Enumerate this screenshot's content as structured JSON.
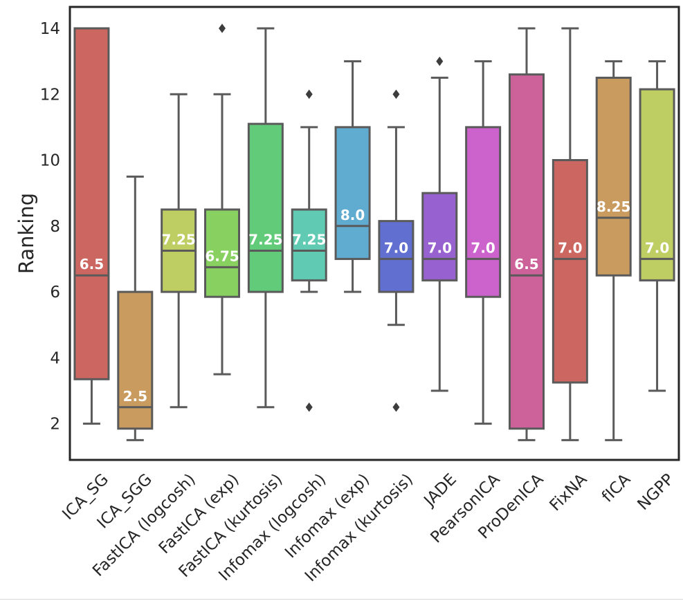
{
  "chart_data": {
    "type": "box",
    "title": "",
    "xlabel": "",
    "ylabel": "Ranking",
    "ylim": [
      0.9,
      14.65
    ],
    "yticks": [
      2,
      4,
      6,
      8,
      10,
      12,
      14
    ],
    "grid": false,
    "categories": [
      "ICA_SG",
      "ICA_SGG",
      "FastICA (logcosh)",
      "FastICA (exp)",
      "FastICA (kurtosis)",
      "Infomax (logcosh)",
      "Infomax (exp)",
      "Infomax (kurtosis)",
      "JADE",
      "PearsonICA",
      "ProDenICA",
      "FixNA",
      "fICA",
      "NGPP"
    ],
    "boxes": [
      {
        "name": "ICA_SG",
        "color": "#cc6660",
        "whisker_low": 2.0,
        "q1": 3.35,
        "median": 6.5,
        "q3": 14.0,
        "whisker_high": 14.0,
        "outliers": [],
        "median_label": "6.5"
      },
      {
        "name": "ICA_SGG",
        "color": "#c99b5e",
        "whisker_low": 1.5,
        "q1": 1.85,
        "median": 2.5,
        "q3": 6.0,
        "whisker_high": 9.5,
        "outliers": [],
        "median_label": "2.5"
      },
      {
        "name": "FastICA (logcosh)",
        "color": "#bece62",
        "whisker_low": 2.5,
        "q1": 6.0,
        "median": 7.25,
        "q3": 8.5,
        "whisker_high": 12.0,
        "outliers": [],
        "median_label": "7.25"
      },
      {
        "name": "FastICA (exp)",
        "color": "#88d05f",
        "whisker_low": 3.5,
        "q1": 5.85,
        "median": 6.75,
        "q3": 8.5,
        "whisker_high": 12.0,
        "outliers": [
          14.0
        ],
        "median_label": "6.75"
      },
      {
        "name": "FastICA (kurtosis)",
        "color": "#62cb7a",
        "whisker_low": 2.5,
        "q1": 6.0,
        "median": 7.25,
        "q3": 11.1,
        "whisker_high": 14.0,
        "outliers": [],
        "median_label": "7.25"
      },
      {
        "name": "Infomax (logcosh)",
        "color": "#60cbb2",
        "whisker_low": 6.0,
        "q1": 6.35,
        "median": 7.25,
        "q3": 8.5,
        "whisker_high": 11.0,
        "outliers": [
          12.0,
          2.5
        ],
        "median_label": "7.25"
      },
      {
        "name": "Infomax (exp)",
        "color": "#60abd0",
        "whisker_low": 6.0,
        "q1": 7.0,
        "median": 8.0,
        "q3": 11.0,
        "whisker_high": 13.0,
        "outliers": [],
        "median_label": "8.0"
      },
      {
        "name": "Infomax (kurtosis)",
        "color": "#6170d0",
        "whisker_low": 5.0,
        "q1": 6.0,
        "median": 7.0,
        "q3": 8.15,
        "whisker_high": 11.0,
        "outliers": [
          12.0,
          2.5
        ],
        "median_label": "7.0"
      },
      {
        "name": "JADE",
        "color": "#9762d0",
        "whisker_low": 3.0,
        "q1": 6.35,
        "median": 7.0,
        "q3": 9.0,
        "whisker_high": 12.5,
        "outliers": [
          13.0
        ],
        "median_label": "7.0"
      },
      {
        "name": "PearsonICA",
        "color": "#cc62cc",
        "whisker_low": 2.0,
        "q1": 5.85,
        "median": 7.0,
        "q3": 11.0,
        "whisker_high": 13.0,
        "outliers": [],
        "median_label": "7.0"
      },
      {
        "name": "ProDenICA",
        "color": "#cc6299",
        "whisker_low": 1.5,
        "q1": 1.85,
        "median": 6.5,
        "q3": 12.6,
        "whisker_high": 14.0,
        "outliers": [],
        "median_label": "6.5"
      },
      {
        "name": "FixNA",
        "color": "#cc6660",
        "whisker_low": 1.5,
        "q1": 3.25,
        "median": 7.0,
        "q3": 10.0,
        "whisker_high": 14.0,
        "outliers": [],
        "median_label": "7.0"
      },
      {
        "name": "fICA",
        "color": "#c99b5e",
        "whisker_low": 1.5,
        "q1": 6.5,
        "median": 8.25,
        "q3": 12.5,
        "whisker_high": 13.0,
        "outliers": [],
        "median_label": "8.25"
      },
      {
        "name": "NGPP",
        "color": "#bece62",
        "whisker_low": 3.0,
        "q1": 6.35,
        "median": 7.0,
        "q3": 12.15,
        "whisker_high": 13.0,
        "outliers": [],
        "median_label": "7.0"
      }
    ]
  }
}
